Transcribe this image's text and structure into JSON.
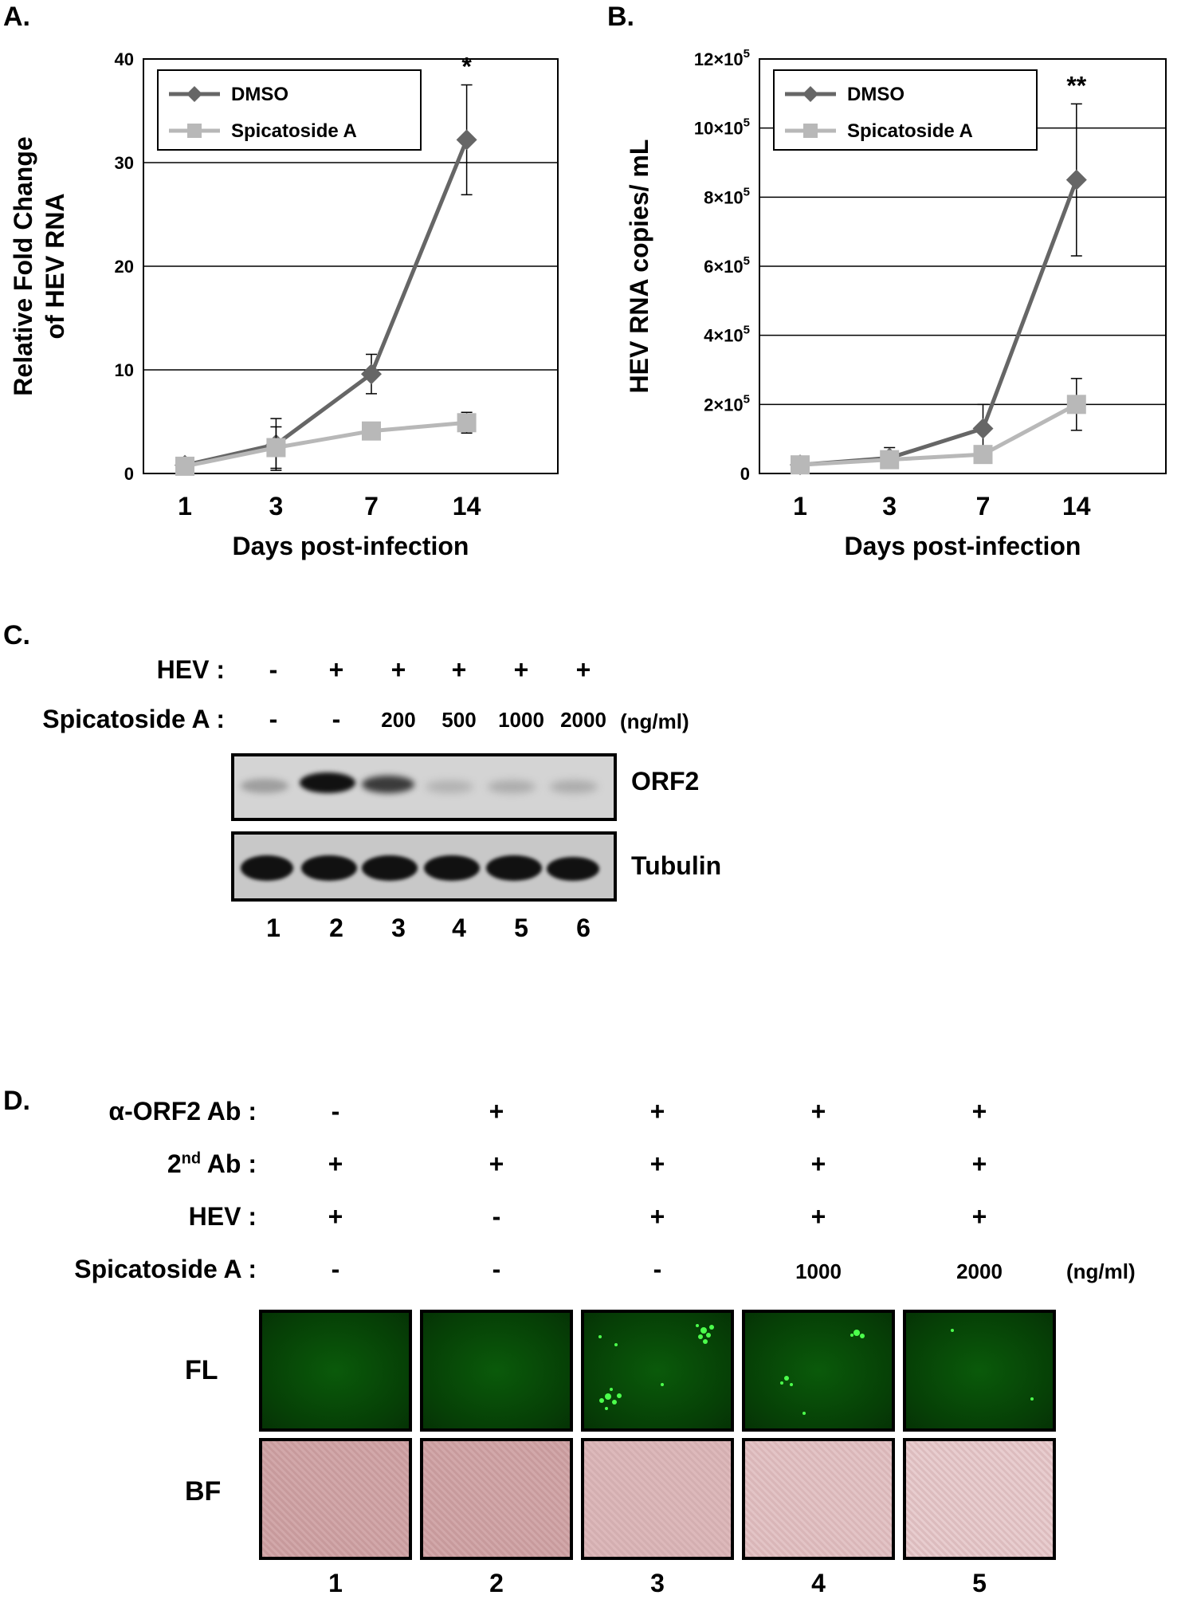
{
  "panelA": {
    "letter": "A.",
    "chart_data": {
      "type": "line",
      "categories": [
        "1",
        "3",
        "7",
        "14"
      ],
      "xlabel": "Days post-infection",
      "ylabel": "Relative Fold Change of HEV RNA",
      "ylabel_line1": "Relative Fold Change",
      "ylabel_line2": "of HEV RNA",
      "ylim": [
        0,
        40
      ],
      "yticks": [
        "0",
        "10",
        "20",
        "30",
        "40"
      ],
      "legend": "top-left",
      "grid": "horizontal",
      "series": [
        {
          "name": "DMSO",
          "values": [
            0.8,
            2.8,
            9.6,
            32.2
          ],
          "errors": [
            0.4,
            2.5,
            1.9,
            5.3
          ],
          "color": "#666666",
          "marker": "diamond"
        },
        {
          "name": "Spicatoside A",
          "values": [
            0.7,
            2.5,
            4.1,
            4.9
          ],
          "errors": [
            0.2,
            2.0,
            0.4,
            1.0
          ],
          "color": "#b8b8b8",
          "marker": "square"
        }
      ],
      "annotation": "*"
    }
  },
  "panelB": {
    "letter": "B.",
    "chart_data": {
      "type": "line",
      "categories": [
        "1",
        "3",
        "7",
        "14"
      ],
      "xlabel": "Days post-infection",
      "ylabel": "HEV RNA copies/ mL",
      "ylim": [
        0,
        1200000
      ],
      "yticks": [
        "0",
        "2×10",
        "4×10",
        "6×10",
        "8×10",
        "10×10",
        "12×10"
      ],
      "ytick_exp": "5",
      "legend": "top-left",
      "grid": "horizontal",
      "series": [
        {
          "name": "DMSO",
          "values": [
            25000,
            45000,
            130000,
            850000
          ],
          "errors": [
            5000,
            30000,
            70000,
            220000
          ],
          "color": "#666666",
          "marker": "diamond"
        },
        {
          "name": "Spicatoside A",
          "values": [
            25000,
            40000,
            55000,
            200000
          ],
          "errors": [
            5000,
            5000,
            5000,
            75000
          ],
          "color": "#b8b8b8",
          "marker": "square"
        }
      ],
      "annotation": "**"
    }
  },
  "panelC": {
    "letter": "C.",
    "hev_label": "HEV :",
    "hev": [
      "-",
      "+",
      "+",
      "+",
      "+",
      "+"
    ],
    "spica_label": "Spicatoside A :",
    "spica": [
      "-",
      "-",
      "200",
      "500",
      "1000",
      "2000"
    ],
    "unit": "(ng/ml)",
    "blot1_label": "ORF2",
    "blot2_label": "Tubulin",
    "lanes": [
      "1",
      "2",
      "3",
      "4",
      "5",
      "6"
    ]
  },
  "panelD": {
    "letter": "D.",
    "rows": [
      {
        "label": "α-ORF2 Ab :",
        "values": [
          "-",
          "+",
          "+",
          "+",
          "+"
        ]
      },
      {
        "label": "2nd Ab :",
        "values": [
          "+",
          "+",
          "+",
          "+",
          "+"
        ]
      },
      {
        "label": "HEV :",
        "values": [
          "+",
          "-",
          "+",
          "+",
          "+"
        ]
      },
      {
        "label": "Spicatoside A :",
        "values": [
          "-",
          "-",
          "-",
          "1000",
          "2000"
        ]
      }
    ],
    "second_ab_pre": "2",
    "second_ab_sup": "nd",
    "second_ab_post": " Ab :",
    "unit": "(ng/ml)",
    "fl_label": "FL",
    "bf_label": "BF",
    "lanes": [
      "1",
      "2",
      "3",
      "4",
      "5"
    ]
  }
}
